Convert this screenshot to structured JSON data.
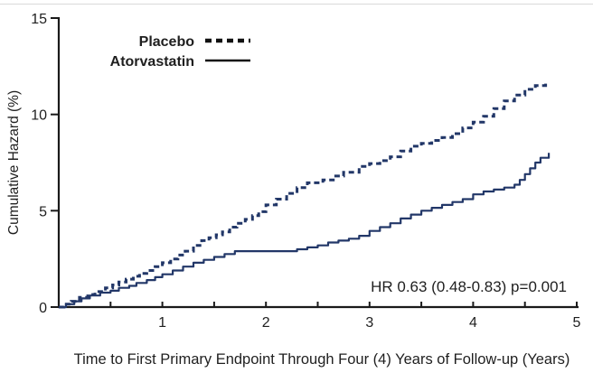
{
  "figure": {
    "background": "#ffffff",
    "text_color": "#1f1f1f",
    "axis_color": "#1a1a1a"
  },
  "chart_data": {
    "type": "line",
    "subtype": "step-cumulative-hazard",
    "title": "",
    "xlabel": "Time to First Primary Endpoint Through Four (4) Years of Follow-up (Years)",
    "ylabel": "Cumulative Hazard (%)",
    "annotation": "HR 0.63 (0.48-0.83)  p=0.001",
    "xlim": [
      0,
      5
    ],
    "ylim": [
      0,
      15
    ],
    "grid": false,
    "legend_position": "top-left-inside",
    "x_axis": {
      "ticks": [
        {
          "value": 1,
          "label": "1"
        },
        {
          "value": 2,
          "label": "2"
        },
        {
          "value": 3,
          "label": "3"
        },
        {
          "value": 4,
          "label": "4"
        },
        {
          "value": 5,
          "label": "5"
        }
      ],
      "minor_ticks": [
        0.5,
        1.5,
        2.5,
        3.5,
        4.5
      ]
    },
    "y_axis": {
      "ticks": [
        {
          "value": 0,
          "label": "0"
        },
        {
          "value": 5,
          "label": "5"
        },
        {
          "value": 10,
          "label": "10"
        },
        {
          "value": 15,
          "label": "15"
        }
      ]
    },
    "series": [
      {
        "name": "Placebo",
        "line_style": "dashed",
        "color": "#223768",
        "legend_marker_color": "#111111",
        "step": true,
        "points": [
          [
            0,
            0
          ],
          [
            0.05,
            0.15
          ],
          [
            0.12,
            0.3
          ],
          [
            0.2,
            0.5
          ],
          [
            0.28,
            0.65
          ],
          [
            0.35,
            0.8
          ],
          [
            0.45,
            1.0
          ],
          [
            0.52,
            1.15
          ],
          [
            0.58,
            1.3
          ],
          [
            0.65,
            1.45
          ],
          [
            0.72,
            1.6
          ],
          [
            0.78,
            1.75
          ],
          [
            0.85,
            1.9
          ],
          [
            0.93,
            2.1
          ],
          [
            1.0,
            2.3
          ],
          [
            1.08,
            2.5
          ],
          [
            1.15,
            2.7
          ],
          [
            1.22,
            2.9
          ],
          [
            1.3,
            3.2
          ],
          [
            1.38,
            3.45
          ],
          [
            1.45,
            3.6
          ],
          [
            1.52,
            3.75
          ],
          [
            1.58,
            3.9
          ],
          [
            1.65,
            4.15
          ],
          [
            1.72,
            4.35
          ],
          [
            1.8,
            4.55
          ],
          [
            1.87,
            4.75
          ],
          [
            1.93,
            4.95
          ],
          [
            2.0,
            5.3
          ],
          [
            2.1,
            5.6
          ],
          [
            2.2,
            5.9
          ],
          [
            2.3,
            6.2
          ],
          [
            2.4,
            6.45
          ],
          [
            2.55,
            6.6
          ],
          [
            2.65,
            6.8
          ],
          [
            2.75,
            7.0
          ],
          [
            2.9,
            7.3
          ],
          [
            3.0,
            7.45
          ],
          [
            3.1,
            7.6
          ],
          [
            3.2,
            7.8
          ],
          [
            3.3,
            8.1
          ],
          [
            3.4,
            8.35
          ],
          [
            3.5,
            8.5
          ],
          [
            3.6,
            8.65
          ],
          [
            3.7,
            8.8
          ],
          [
            3.8,
            9.0
          ],
          [
            3.9,
            9.3
          ],
          [
            4.0,
            9.6
          ],
          [
            4.1,
            9.9
          ],
          [
            4.2,
            10.3
          ],
          [
            4.3,
            10.7
          ],
          [
            4.4,
            11.0
          ],
          [
            4.5,
            11.3
          ],
          [
            4.6,
            11.5
          ],
          [
            4.7,
            11.6
          ]
        ]
      },
      {
        "name": "Atorvastatin",
        "line_style": "solid",
        "color": "#223768",
        "legend_marker_color": "#111111",
        "step": true,
        "points": [
          [
            0,
            0
          ],
          [
            0.07,
            0.15
          ],
          [
            0.15,
            0.3
          ],
          [
            0.22,
            0.45
          ],
          [
            0.3,
            0.6
          ],
          [
            0.4,
            0.75
          ],
          [
            0.5,
            0.85
          ],
          [
            0.58,
            1.0
          ],
          [
            0.68,
            1.1
          ],
          [
            0.75,
            1.25
          ],
          [
            0.85,
            1.4
          ],
          [
            0.93,
            1.55
          ],
          [
            1.0,
            1.7
          ],
          [
            1.1,
            1.9
          ],
          [
            1.2,
            2.1
          ],
          [
            1.3,
            2.3
          ],
          [
            1.4,
            2.45
          ],
          [
            1.5,
            2.6
          ],
          [
            1.6,
            2.75
          ],
          [
            1.7,
            2.9
          ],
          [
            2.3,
            3.0
          ],
          [
            2.4,
            3.1
          ],
          [
            2.5,
            3.2
          ],
          [
            2.6,
            3.35
          ],
          [
            2.7,
            3.45
          ],
          [
            2.8,
            3.55
          ],
          [
            2.9,
            3.7
          ],
          [
            3.0,
            3.95
          ],
          [
            3.1,
            4.15
          ],
          [
            3.2,
            4.35
          ],
          [
            3.3,
            4.6
          ],
          [
            3.4,
            4.8
          ],
          [
            3.5,
            5.0
          ],
          [
            3.6,
            5.15
          ],
          [
            3.7,
            5.3
          ],
          [
            3.8,
            5.45
          ],
          [
            3.9,
            5.6
          ],
          [
            4.0,
            5.85
          ],
          [
            4.1,
            6.0
          ],
          [
            4.2,
            6.1
          ],
          [
            4.3,
            6.2
          ],
          [
            4.4,
            6.35
          ],
          [
            4.45,
            6.6
          ],
          [
            4.5,
            6.9
          ],
          [
            4.55,
            7.2
          ],
          [
            4.6,
            7.5
          ],
          [
            4.65,
            7.75
          ],
          [
            4.73,
            8.0
          ]
        ]
      }
    ]
  }
}
